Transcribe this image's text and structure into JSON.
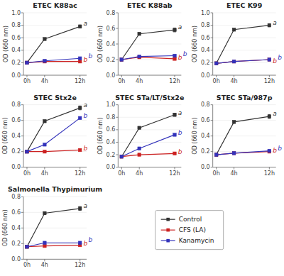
{
  "chart_data": [
    {
      "type": "line",
      "title": "ETEC K88ac",
      "ylabel": "OD (660 nm)",
      "x": [
        0,
        4,
        12
      ],
      "xlim": [
        -0.8,
        13.5
      ],
      "xticks": [
        {
          "value": 0,
          "label": "0h"
        },
        {
          "value": 4,
          "label": "4h"
        },
        {
          "value": 12,
          "label": "12h"
        }
      ],
      "ylim": [
        0.0,
        1.0
      ],
      "yticks": [
        {
          "value": 0,
          "label": "0.0"
        },
        0.2,
        0.4,
        0.6,
        0.8,
        {
          "value": 1,
          "label": "1.0"
        }
      ],
      "series": [
        {
          "name": "Control",
          "color": "#333333",
          "marker": "square",
          "values": [
            0.2,
            0.58,
            0.78
          ],
          "errors": [
            null,
            0.015,
            0.025
          ]
        },
        {
          "name": "CFS (LA)",
          "color": "#cc2222",
          "marker": "square",
          "values": [
            0.2,
            0.22,
            0.22
          ],
          "errors": [
            null,
            null,
            0.01
          ]
        },
        {
          "name": "Kanamycin",
          "color": "#3333bb",
          "marker": "square",
          "values": [
            0.2,
            0.23,
            0.27
          ],
          "errors": [
            null,
            null,
            0.012
          ]
        }
      ],
      "annotations": [
        {
          "text": "a",
          "x": 12.3,
          "y": 0.82,
          "color": "#333333"
        },
        {
          "text": "b",
          "x": 12.3,
          "y": 0.25,
          "color": "#cc2222"
        },
        {
          "text": "b",
          "x": 12.3,
          "y": 0.3,
          "color": "#3333bb"
        }
      ]
    },
    {
      "type": "line",
      "title": "ETEC K88ab",
      "ylabel": "OD (660 nm)",
      "x": [
        0,
        4,
        12
      ],
      "xlim": [
        -0.8,
        13.5
      ],
      "xticks": [
        {
          "value": 0,
          "label": "0h"
        },
        {
          "value": 4,
          "label": "4h"
        },
        {
          "value": 12,
          "label": "12h"
        }
      ],
      "ylim": [
        0.0,
        0.8
      ],
      "yticks": [
        {
          "value": 0,
          "label": "0.0"
        },
        0.2,
        0.4,
        0.6,
        0.8
      ],
      "series": [
        {
          "name": "Control",
          "color": "#333333",
          "marker": "square",
          "values": [
            0.2,
            0.53,
            0.58
          ],
          "errors": [
            null,
            0.015,
            0.025
          ]
        },
        {
          "name": "CFS (LA)",
          "color": "#cc2222",
          "marker": "square",
          "values": [
            0.2,
            0.23,
            0.21
          ],
          "errors": [
            null,
            null,
            0.01
          ]
        },
        {
          "name": "Kanamycin",
          "color": "#3333bb",
          "marker": "square",
          "values": [
            0.2,
            0.24,
            0.25
          ],
          "errors": [
            null,
            null,
            0.012
          ]
        }
      ],
      "annotations": [
        {
          "text": "a",
          "x": 12.3,
          "y": 0.61,
          "color": "#333333"
        },
        {
          "text": "b",
          "x": 12.3,
          "y": 0.22,
          "color": "#cc2222"
        },
        {
          "text": "b",
          "x": 12.3,
          "y": 0.27,
          "color": "#3333bb"
        }
      ]
    },
    {
      "type": "line",
      "title": "ETEC K99",
      "ylabel": "OD (660 nm)",
      "x": [
        0,
        4,
        12
      ],
      "xlim": [
        -0.8,
        13.5
      ],
      "xticks": [
        {
          "value": 0,
          "label": "0h"
        },
        {
          "value": 4,
          "label": "4h"
        },
        {
          "value": 12,
          "label": "12h"
        }
      ],
      "ylim": [
        0.0,
        1.0
      ],
      "yticks": [
        {
          "value": 0,
          "label": "0.0"
        },
        0.2,
        0.4,
        0.6,
        0.8,
        {
          "value": 1,
          "label": "1.0"
        }
      ],
      "series": [
        {
          "name": "Control",
          "color": "#333333",
          "marker": "square",
          "values": [
            0.19,
            0.73,
            0.8
          ],
          "errors": [
            null,
            0.015,
            0.025
          ]
        },
        {
          "name": "CFS (LA)",
          "color": "#cc2222",
          "marker": "square",
          "values": [
            0.19,
            0.22,
            0.25
          ],
          "errors": [
            null,
            null,
            0.01
          ]
        },
        {
          "name": "Kanamycin",
          "color": "#3333bb",
          "marker": "square",
          "values": [
            0.19,
            0.22,
            0.25
          ],
          "errors": [
            null,
            null,
            0.012
          ]
        }
      ],
      "annotations": [
        {
          "text": "a",
          "x": 12.3,
          "y": 0.84,
          "color": "#333333"
        },
        {
          "text": "b",
          "x": 12.3,
          "y": 0.22,
          "color": "#cc2222"
        },
        {
          "text": "b",
          "x": 12.3,
          "y": 0.28,
          "color": "#3333bb"
        }
      ]
    },
    {
      "type": "line",
      "title": "STEC Stx2e",
      "ylabel": "OD (660 nm)",
      "x": [
        0,
        4,
        12
      ],
      "xlim": [
        -0.8,
        13.5
      ],
      "xticks": [
        {
          "value": 0,
          "label": "0h"
        },
        {
          "value": 4,
          "label": "4h"
        },
        {
          "value": 12,
          "label": "12h"
        }
      ],
      "ylim": [
        0.0,
        0.8
      ],
      "yticks": [
        {
          "value": 0,
          "label": "0.0"
        },
        0.2,
        0.4,
        0.6,
        0.8
      ],
      "series": [
        {
          "name": "Control",
          "color": "#333333",
          "marker": "square",
          "values": [
            0.2,
            0.59,
            0.76
          ],
          "errors": [
            null,
            0.015,
            0.025
          ]
        },
        {
          "name": "CFS (LA)",
          "color": "#cc2222",
          "marker": "square",
          "values": [
            0.2,
            0.2,
            0.22
          ],
          "errors": [
            null,
            null,
            0.01
          ]
        },
        {
          "name": "Kanamycin",
          "color": "#3333bb",
          "marker": "square",
          "values": [
            0.2,
            0.29,
            0.63
          ],
          "errors": [
            null,
            null,
            0.012
          ]
        }
      ],
      "annotations": [
        {
          "text": "a",
          "x": 12.3,
          "y": 0.79,
          "color": "#333333"
        },
        {
          "text": "b",
          "x": 12.3,
          "y": 0.24,
          "color": "#cc2222"
        },
        {
          "text": "b",
          "x": 12.3,
          "y": 0.66,
          "color": "#3333bb"
        }
      ]
    },
    {
      "type": "line",
      "title": "STEC STa/LT/Stx2e",
      "ylabel": "OD (660 nm)",
      "x": [
        0,
        4,
        12
      ],
      "xlim": [
        -0.8,
        13.5
      ],
      "xticks": [
        {
          "value": 0,
          "label": "0h"
        },
        {
          "value": 4,
          "label": "4h"
        },
        {
          "value": 12,
          "label": "12h"
        }
      ],
      "ylim": [
        0.0,
        1.0
      ],
      "yticks": [
        {
          "value": 0,
          "label": "0.0"
        },
        0.2,
        0.4,
        0.6,
        0.8,
        {
          "value": 1,
          "label": "1.0"
        }
      ],
      "series": [
        {
          "name": "Control",
          "color": "#333333",
          "marker": "square",
          "values": [
            0.17,
            0.63,
            0.84
          ],
          "errors": [
            null,
            0.015,
            0.025
          ]
        },
        {
          "name": "CFS (LA)",
          "color": "#cc2222",
          "marker": "square",
          "values": [
            0.17,
            0.2,
            0.22
          ],
          "errors": [
            null,
            null,
            0.01
          ]
        },
        {
          "name": "Kanamycin",
          "color": "#3333bb",
          "marker": "square",
          "values": [
            0.17,
            0.3,
            0.52
          ],
          "errors": [
            null,
            null,
            0.012
          ]
        }
      ],
      "annotations": [
        {
          "text": "a",
          "x": 12.3,
          "y": 0.87,
          "color": "#333333"
        },
        {
          "text": "b",
          "x": 12.3,
          "y": 0.24,
          "color": "#cc2222"
        },
        {
          "text": "b",
          "x": 12.3,
          "y": 0.55,
          "color": "#3333bb"
        }
      ]
    },
    {
      "type": "line",
      "title": "STEC STa/987p",
      "ylabel": "OD (660 nm)",
      "x": [
        0,
        4,
        12
      ],
      "xlim": [
        -0.8,
        13.5
      ],
      "xticks": [
        {
          "value": 0,
          "label": "0h"
        },
        {
          "value": 4,
          "label": "4h"
        },
        {
          "value": 12,
          "label": "12h"
        }
      ],
      "ylim": [
        0.0,
        0.8
      ],
      "yticks": [
        {
          "value": 0,
          "label": "0.0"
        },
        0.2,
        0.4,
        0.6,
        0.8
      ],
      "series": [
        {
          "name": "Control",
          "color": "#333333",
          "marker": "square",
          "values": [
            0.16,
            0.58,
            0.65
          ],
          "errors": [
            null,
            0.015,
            0.025
          ]
        },
        {
          "name": "CFS (LA)",
          "color": "#cc2222",
          "marker": "square",
          "values": [
            0.16,
            0.18,
            0.2
          ],
          "errors": [
            null,
            null,
            0.01
          ]
        },
        {
          "name": "Kanamycin",
          "color": "#3333bb",
          "marker": "square",
          "values": [
            0.16,
            0.18,
            0.21
          ],
          "errors": [
            null,
            null,
            0.012
          ]
        }
      ],
      "annotations": [
        {
          "text": "a",
          "x": 12.3,
          "y": 0.68,
          "color": "#333333"
        },
        {
          "text": "b",
          "x": 12.3,
          "y": 0.21,
          "color": "#cc2222"
        },
        {
          "text": "b",
          "x": 12.3,
          "y": 0.24,
          "color": "#3333bb"
        }
      ]
    },
    {
      "type": "line",
      "title": "Salmonella Thypimurium",
      "ylabel": "OD (660 nm)",
      "x": [
        0,
        4,
        12
      ],
      "xlim": [
        -0.8,
        13.5
      ],
      "xticks": [
        {
          "value": 0,
          "label": "0h"
        },
        {
          "value": 4,
          "label": "4h"
        },
        {
          "value": 12,
          "label": "12h"
        }
      ],
      "ylim": [
        0.0,
        0.8
      ],
      "yticks": [
        {
          "value": 0,
          "label": "0.0"
        },
        0.2,
        0.4,
        0.6,
        0.8
      ],
      "series": [
        {
          "name": "Control",
          "color": "#333333",
          "marker": "square",
          "values": [
            0.16,
            0.59,
            0.65
          ],
          "errors": [
            null,
            0.015,
            0.025
          ]
        },
        {
          "name": "CFS (LA)",
          "color": "#cc2222",
          "marker": "square",
          "values": [
            0.16,
            0.17,
            0.18
          ],
          "errors": [
            null,
            null,
            0.01
          ]
        },
        {
          "name": "Kanamycin",
          "color": "#3333bb",
          "marker": "square",
          "values": [
            0.16,
            0.21,
            0.21
          ],
          "errors": [
            null,
            null,
            0.012
          ]
        }
      ],
      "annotations": [
        {
          "text": "a",
          "x": 12.3,
          "y": 0.68,
          "color": "#333333"
        },
        {
          "text": "b",
          "x": 12.3,
          "y": 0.2,
          "color": "#cc2222"
        },
        {
          "text": "b",
          "x": 12.3,
          "y": 0.24,
          "color": "#3333bb"
        }
      ]
    }
  ]
}
